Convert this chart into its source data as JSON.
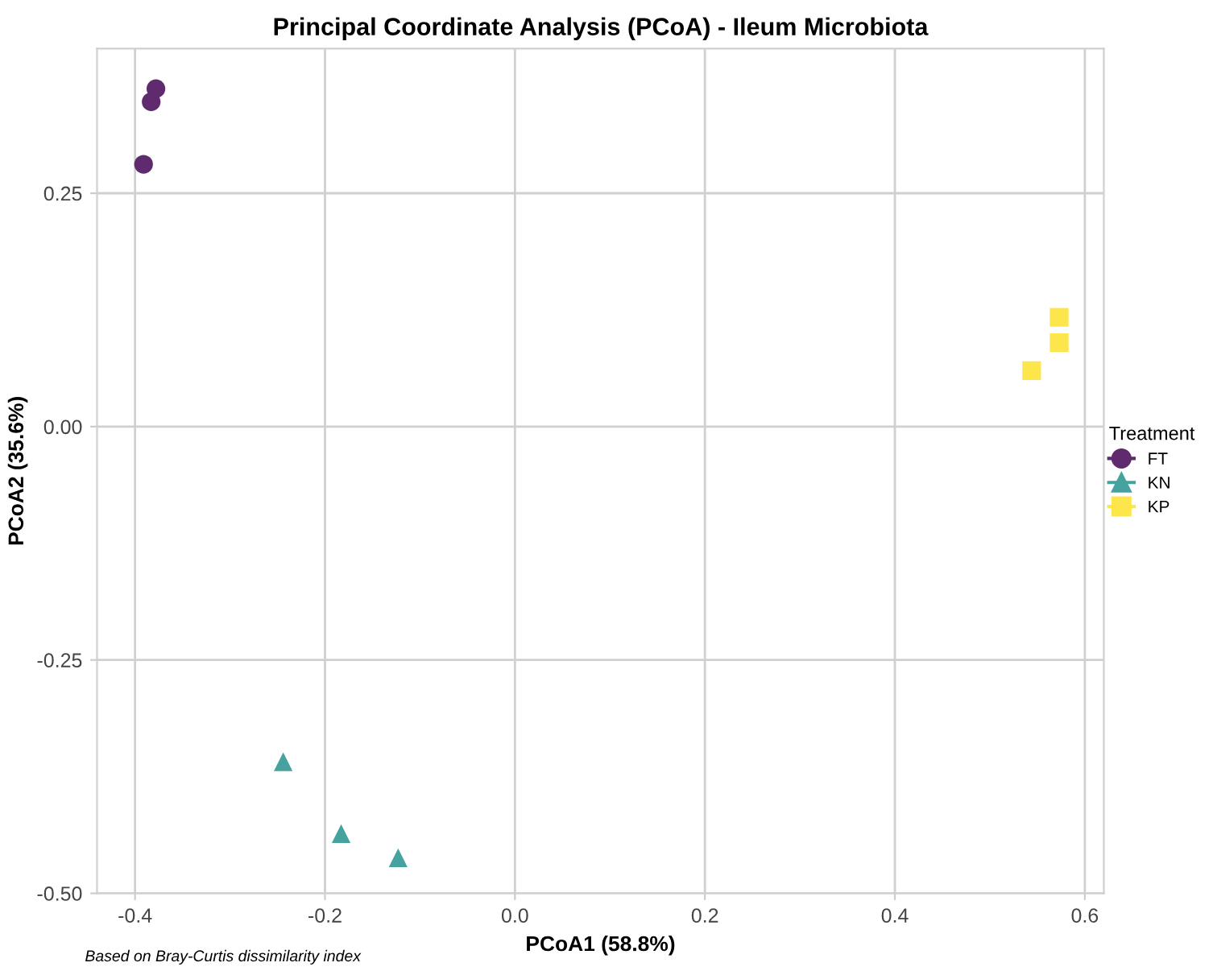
{
  "chart_data": {
    "type": "scatter",
    "title": "Principal Coordinate Analysis (PCoA) - Ileum Microbiota",
    "xlabel": "PCoA1 (58.8%)",
    "ylabel": "PCoA2 (35.6%)",
    "legend_title": "Treatment",
    "legend": "right",
    "grid": true,
    "series": [
      {
        "name": "FT",
        "color": "#5f2a6e",
        "marker": "circle",
        "x": [
          -0.378,
          -0.383,
          -0.391
        ],
        "values": [
          0.362,
          0.348,
          0.281
        ]
      },
      {
        "name": "KN",
        "color": "#45a29e",
        "marker": "triangle",
        "x": [
          -0.244,
          -0.183,
          -0.123
        ],
        "values": [
          -0.359,
          -0.436,
          -0.462
        ]
      },
      {
        "name": "KP",
        "color": "#fde64b",
        "marker": "square",
        "x": [
          0.573,
          0.573,
          0.544
        ],
        "values": [
          0.117,
          0.09,
          0.06
        ]
      }
    ],
    "xlim": [
      -0.44,
      0.62
    ],
    "ylim": [
      -0.5,
      0.405
    ],
    "xticks": [
      -0.4,
      -0.2,
      {
        "value": 0,
        "label": "0.0"
      },
      0.2,
      0.4,
      0.6
    ],
    "yticks": [
      {
        "value": -0.5,
        "label": "-0.50"
      },
      {
        "value": -0.25,
        "label": "-0.25"
      },
      {
        "value": 0,
        "label": "0.00"
      },
      {
        "value": 0.25,
        "label": "0.25"
      }
    ],
    "annotations": [
      "Based on Bray-Curtis dissimilarity index"
    ]
  }
}
